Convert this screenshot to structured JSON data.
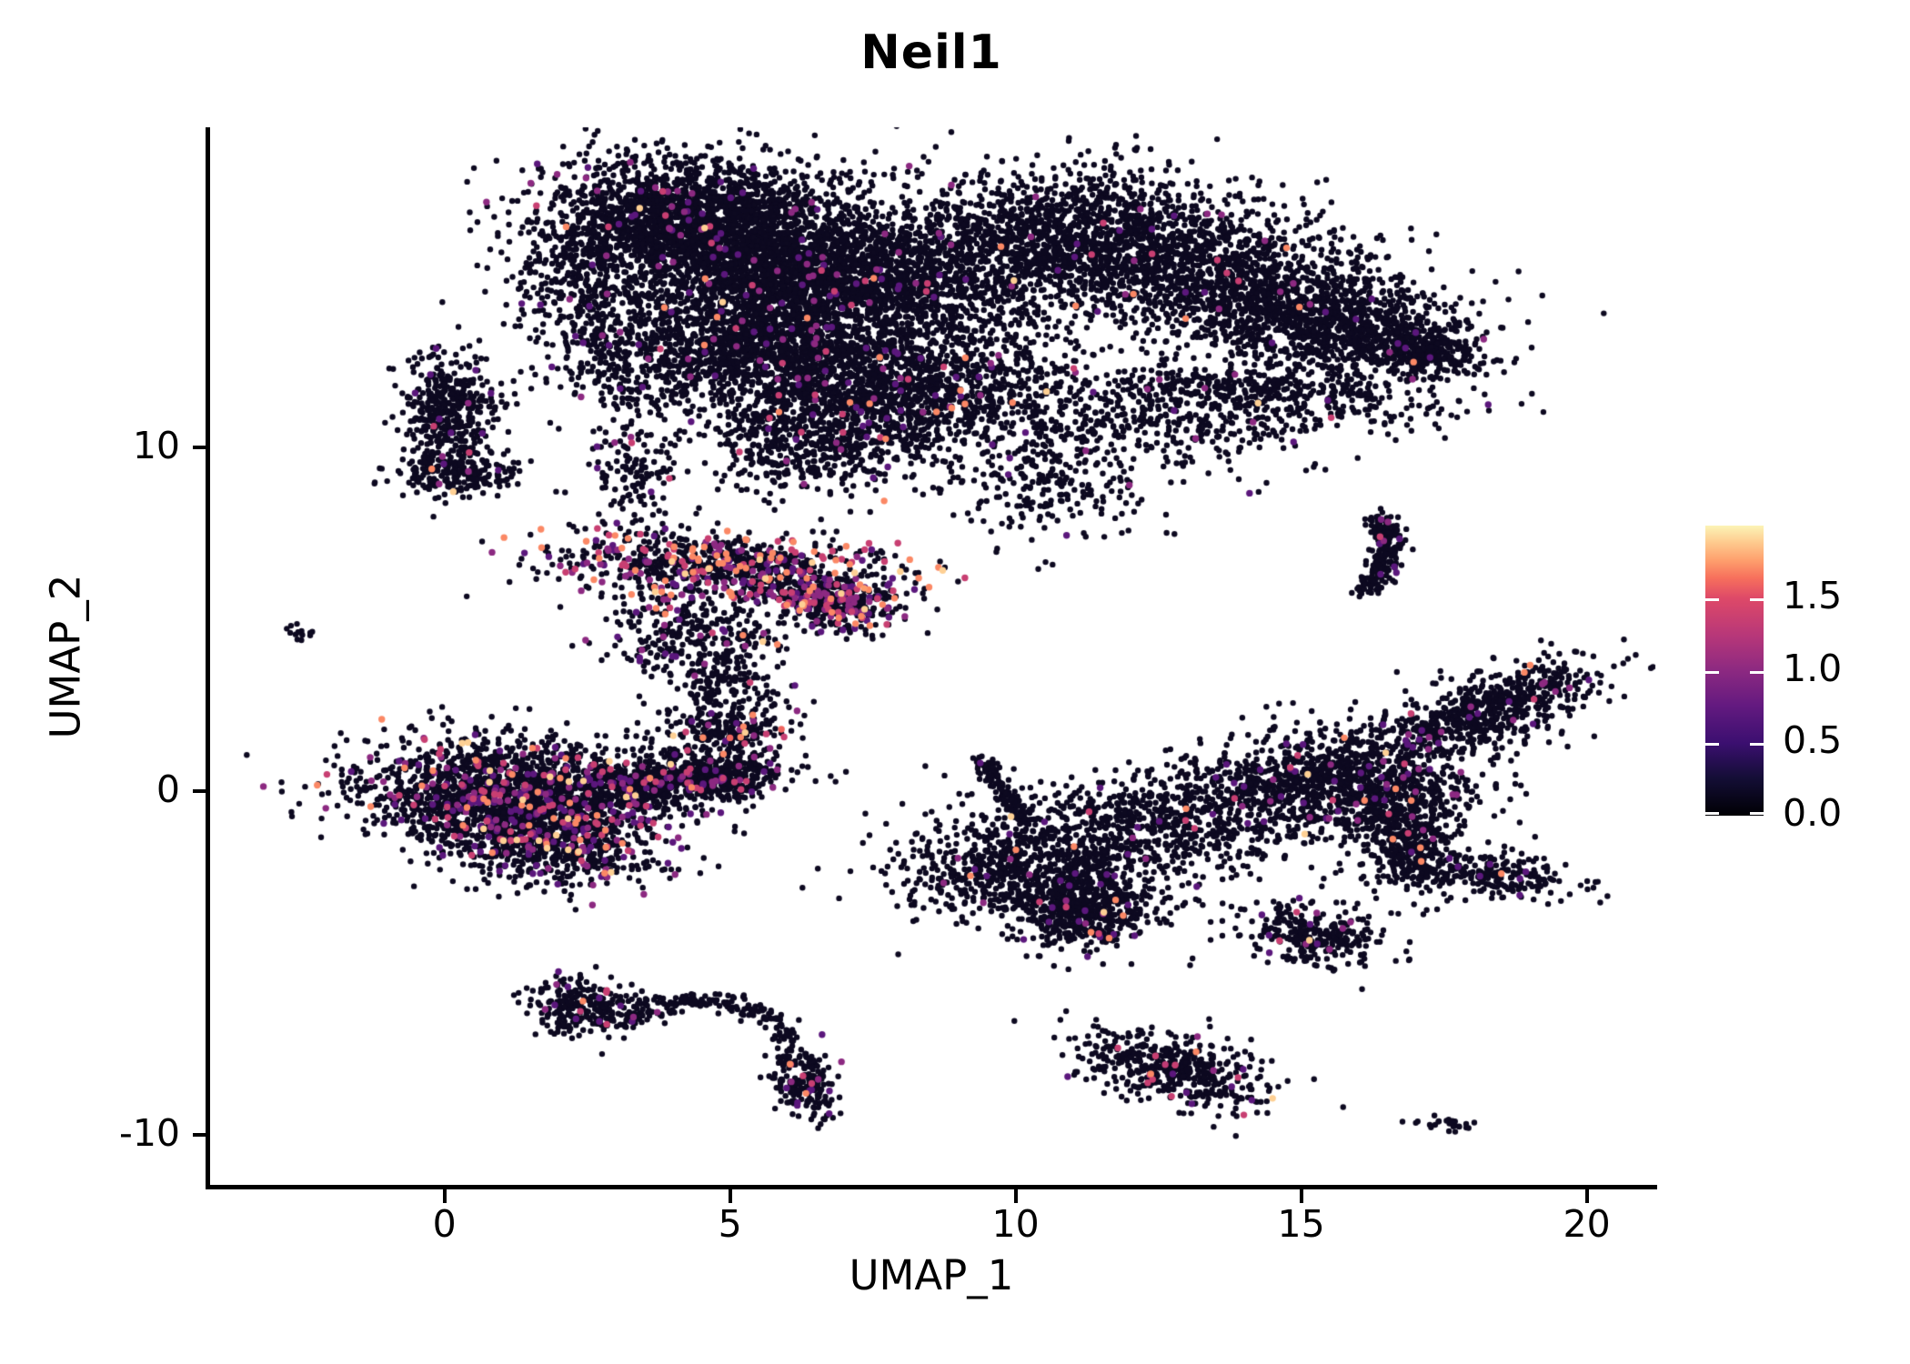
{
  "title": "Neil1",
  "axes": {
    "x": {
      "label": "UMAP_1",
      "tick_labels": [
        "0",
        "5",
        "10",
        "15",
        "20"
      ],
      "tick_values": [
        0,
        5,
        10,
        15,
        20
      ],
      "lim": [
        -4.15,
        21.2
      ]
    },
    "y": {
      "label": "UMAP_2",
      "tick_labels": [
        "-10",
        "0",
        "10"
      ],
      "tick_values": [
        -10,
        0,
        10
      ],
      "lim": [
        -11.5,
        19.3
      ]
    }
  },
  "colorbar": {
    "tick_labels": [
      "0.0",
      "0.5",
      "1.0",
      "1.5"
    ],
    "tick_values": [
      0,
      0.5,
      1.0,
      1.5
    ],
    "vmin": 0,
    "vmax": 2.0,
    "stops": [
      [
        0,
        "#000004"
      ],
      [
        0.13,
        "#140e36"
      ],
      [
        0.25,
        "#3b0f70"
      ],
      [
        0.38,
        "#641a80"
      ],
      [
        0.5,
        "#8c2981"
      ],
      [
        0.62,
        "#b73779"
      ],
      [
        0.75,
        "#de4968"
      ],
      [
        0.82,
        "#f7705c"
      ],
      [
        0.88,
        "#fe9f6d"
      ],
      [
        0.94,
        "#fec98d"
      ],
      [
        1,
        "#fcf4b6"
      ]
    ]
  },
  "style": {
    "zero_color": "#0d0920",
    "axis_color": "#000000",
    "background": "#ffffff",
    "point_radius": 3.2,
    "expr_point_radius": 3.7,
    "expr_levels": [
      0.7,
      1.0,
      1.35,
      1.7,
      1.9
    ],
    "expr_weights": [
      0.45,
      0.3,
      0.15,
      0.08,
      0.02
    ]
  },
  "chart_data": {
    "type": "scatter",
    "title": "Neil1",
    "xlabel": "UMAP_1",
    "ylabel": "UMAP_2",
    "xlim": [
      -4.15,
      21.2
    ],
    "ylim": [
      -11.5,
      19.3
    ],
    "grid": false,
    "legend_position": "right-colorbar",
    "colorscale": "magma 0 to 2.0, black = no expression",
    "clusters": [
      {
        "name": "top-left-core-upper",
        "cx": 4.3,
        "cy": 16.5,
        "sx": 1.25,
        "sy": 0.95,
        "rot": -8,
        "n": 2200,
        "f": 0.02
      },
      {
        "name": "top-left-core-right",
        "cx": 6.9,
        "cy": 15.0,
        "sx": 1.5,
        "sy": 1.05,
        "rot": -10,
        "n": 2100,
        "f": 0.02
      },
      {
        "name": "top-left-mid",
        "cx": 5.3,
        "cy": 13.0,
        "sx": 1.1,
        "sy": 0.95,
        "rot": 0,
        "n": 1200,
        "f": 0.03
      },
      {
        "name": "top-left-lower",
        "cx": 7.8,
        "cy": 11.6,
        "sx": 1.3,
        "sy": 0.85,
        "rot": -6,
        "n": 1200,
        "f": 0.03
      },
      {
        "name": "top-left-fill",
        "cx": 6.5,
        "cy": 13.8,
        "sx": 2.3,
        "sy": 1.8,
        "rot": 0,
        "n": 900,
        "f": 0.02
      },
      {
        "name": "top-left-west-tail",
        "cx": 2.9,
        "cy": 13.2,
        "sx": 0.5,
        "sy": 1.0,
        "rot": 0,
        "n": 280,
        "f": 0.04
      },
      {
        "name": "top-left-west-edge",
        "cx": 2.3,
        "cy": 15.2,
        "sx": 0.5,
        "sy": 0.8,
        "rot": -20,
        "n": 150,
        "f": 0.05
      },
      {
        "name": "left-descender",
        "cx": 3.3,
        "cy": 9.6,
        "sx": 0.4,
        "sy": 0.9,
        "rot": 0,
        "n": 130,
        "f": 0.05
      },
      {
        "name": "mid-lower-lobe",
        "cx": 6.3,
        "cy": 10.2,
        "sx": 0.9,
        "sy": 0.8,
        "rot": 0,
        "n": 480,
        "f": 0.03
      },
      {
        "name": "top-right-upper-left",
        "cx": 11.2,
        "cy": 16.2,
        "sx": 1.3,
        "sy": 0.9,
        "rot": 0,
        "n": 1150,
        "f": 0.015
      },
      {
        "name": "top-right-core",
        "cx": 13.9,
        "cy": 14.8,
        "sx": 1.5,
        "sy": 1.0,
        "rot": -12,
        "n": 1400,
        "f": 0.015
      },
      {
        "name": "top-right-east",
        "cx": 15.9,
        "cy": 13.4,
        "sx": 1.1,
        "sy": 0.7,
        "rot": -14,
        "n": 780,
        "f": 0.02
      },
      {
        "name": "top-right-beak",
        "cx": 17.2,
        "cy": 12.8,
        "sx": 0.45,
        "sy": 0.3,
        "rot": -10,
        "n": 250,
        "f": 0.02
      },
      {
        "name": "top-right-lower-lip",
        "cx": 14.7,
        "cy": 11.6,
        "sx": 1.5,
        "sy": 0.45,
        "rot": -6,
        "n": 400,
        "f": 0.02
      },
      {
        "name": "top-bridge",
        "cx": 9.7,
        "cy": 14.9,
        "sx": 1.1,
        "sy": 1.5,
        "rot": 0,
        "n": 430,
        "f": 0.02
      },
      {
        "name": "top-right-under",
        "cx": 12.4,
        "cy": 10.8,
        "sx": 1.6,
        "sy": 0.75,
        "rot": -8,
        "n": 430,
        "f": 0.02
      },
      {
        "name": "top-right-trail",
        "cx": 10.5,
        "cy": 9.0,
        "sx": 0.9,
        "sy": 0.9,
        "rot": 0,
        "n": 240,
        "f": 0.03
      },
      {
        "name": "center-left-lobe",
        "cx": 10.4,
        "cy": -2.4,
        "sx": 1.25,
        "sy": 0.8,
        "rot": -10,
        "n": 950,
        "f": 0.03
      },
      {
        "name": "center-v-tip",
        "cx": 11.2,
        "cy": -3.5,
        "sx": 0.5,
        "sy": 0.55,
        "rot": 0,
        "n": 380,
        "f": 0.05
      },
      {
        "name": "center-mid-band",
        "cx": 12.3,
        "cy": -1.1,
        "sx": 1.3,
        "sy": 0.65,
        "rot": -6,
        "n": 480,
        "f": 0.02
      },
      {
        "name": "center-right-core",
        "cx": 15.9,
        "cy": 0.2,
        "sx": 1.15,
        "sy": 0.85,
        "rot": 0,
        "n": 1050,
        "f": 0.03
      },
      {
        "name": "right-arm",
        "cx": 18.2,
        "cy": 2.3,
        "sx": 1.15,
        "sy": 0.5,
        "rot": 31,
        "n": 680,
        "f": 0.03
      },
      {
        "name": "right-leg",
        "cx": 16.9,
        "cy": -1.3,
        "sx": 0.45,
        "sy": 0.85,
        "rot": 0,
        "n": 360,
        "f": 0.03
      },
      {
        "name": "right-hook",
        "cx": 18.2,
        "cy": -2.4,
        "sx": 0.75,
        "sy": 0.3,
        "rot": -14,
        "n": 250,
        "f": 0.03
      },
      {
        "name": "center-bridge",
        "cx": 13.6,
        "cy": -0.1,
        "sx": 1.2,
        "sy": 0.55,
        "rot": 10,
        "n": 300,
        "f": 0.02
      },
      {
        "name": "island-right",
        "cx": 15.2,
        "cy": -4.2,
        "sx": 0.6,
        "sy": 0.4,
        "rot": -22,
        "n": 290,
        "f": 0.05
      },
      {
        "name": "bottom-left-core",
        "cx": 1.2,
        "cy": 0.0,
        "sx": 1.35,
        "sy": 0.75,
        "rot": -6,
        "n": 1650,
        "f": 0.13,
        "w": [
          0.35,
          0.3,
          0.2,
          0.1,
          0.05
        ]
      },
      {
        "name": "bottom-left-south",
        "cx": 1.7,
        "cy": -1.4,
        "sx": 1.0,
        "sy": 0.6,
        "rot": -10,
        "n": 850,
        "f": 0.13,
        "w": [
          0.35,
          0.3,
          0.2,
          0.1,
          0.05
        ]
      },
      {
        "name": "bottom-left-tail",
        "cx": 3.8,
        "cy": 0.3,
        "sx": 1.0,
        "sy": 0.4,
        "rot": 6,
        "n": 620,
        "f": 0.09,
        "w": [
          0.4,
          0.3,
          0.18,
          0.09,
          0.03
        ]
      },
      {
        "name": "bottom-left-tip",
        "cx": 4.9,
        "cy": 0.45,
        "sx": 0.35,
        "sy": 0.3,
        "rot": 0,
        "n": 190,
        "f": 0.05
      },
      {
        "name": "violet-band",
        "cx": 4.9,
        "cy": 6.5,
        "sx": 1.5,
        "sy": 0.52,
        "rot": -4,
        "n": 820,
        "f": 0.3,
        "w": [
          0.22,
          0.28,
          0.22,
          0.2,
          0.08
        ]
      },
      {
        "name": "violet-knob",
        "cx": 6.9,
        "cy": 5.5,
        "sx": 0.55,
        "sy": 0.42,
        "rot": -18,
        "n": 360,
        "f": 0.28,
        "w": [
          0.25,
          0.3,
          0.2,
          0.17,
          0.08
        ]
      },
      {
        "name": "violet-under",
        "cx": 4.2,
        "cy": 4.6,
        "sx": 0.75,
        "sy": 0.65,
        "rot": 0,
        "n": 260,
        "f": 0.12
      },
      {
        "name": "violet-chain",
        "cx": 5.0,
        "cy": 2.9,
        "sx": 0.5,
        "sy": 0.85,
        "rot": 0,
        "n": 240,
        "f": 0.06
      },
      {
        "name": "violet-chain-foot",
        "cx": 4.9,
        "cy": 1.7,
        "sx": 0.55,
        "sy": 0.3,
        "rot": 0,
        "n": 150,
        "f": 0.1,
        "w": [
          0.2,
          0.2,
          0.2,
          0.3,
          0.1
        ]
      },
      {
        "name": "west-isle-upper",
        "cx": 0.05,
        "cy": 11.1,
        "sx": 0.42,
        "sy": 0.8,
        "rot": 0,
        "n": 400,
        "f": 0.03
      },
      {
        "name": "west-isle-lower",
        "cx": 0.2,
        "cy": 9.3,
        "sx": 0.5,
        "sy": 0.35,
        "rot": 0,
        "n": 230,
        "f": 0.04
      },
      {
        "name": "west-dash",
        "cx": -2.55,
        "cy": 4.6,
        "sx": 0.16,
        "sy": 0.12,
        "rot": -20,
        "n": 14,
        "f": 0
      },
      {
        "name": "south-isle",
        "cx": 2.5,
        "cy": -6.3,
        "sx": 0.5,
        "sy": 0.42,
        "rot": 0,
        "n": 270,
        "f": 0.05
      },
      {
        "name": "arc-foot",
        "cx": 6.3,
        "cy": -8.4,
        "sx": 0.28,
        "sy": 0.6,
        "rot": 12,
        "n": 210,
        "f": 0.06
      },
      {
        "name": "south-center-isle",
        "cx": 12.8,
        "cy": -8.1,
        "sx": 0.95,
        "sy": 0.5,
        "rot": -25,
        "n": 470,
        "f": 0.05,
        "w": [
          0.3,
          0.3,
          0.3,
          0.08,
          0.02
        ]
      },
      {
        "name": "south-east-dash",
        "cx": 17.5,
        "cy": -9.65,
        "sx": 0.28,
        "sy": 0.1,
        "rot": -8,
        "n": 26,
        "f": 0.05
      }
    ],
    "paths": [
      {
        "name": "center-spike",
        "p0": [
          9.4,
          0.9
        ],
        "c": [
          9.7,
          0.0
        ],
        "p1": [
          10.3,
          -0.9
        ],
        "w": 0.1,
        "n": 130,
        "f": 0.02
      },
      {
        "name": "east-comma",
        "p0": [
          16.35,
          8.0
        ],
        "c": [
          16.8,
          6.9
        ],
        "p1": [
          16.1,
          5.8
        ],
        "w": 0.15,
        "n": 230,
        "f": 0.04
      },
      {
        "name": "south-arc",
        "p0": [
          3.2,
          -6.7
        ],
        "c": [
          4.9,
          -5.2
        ],
        "p1": [
          6.2,
          -7.3
        ],
        "w": 0.14,
        "n": 160,
        "f": 0.01
      }
    ],
    "highlight_points": [
      {
        "x": 9.92,
        "y": -0.74,
        "v": 1.9
      },
      {
        "x": 14.62,
        "y": -4.35,
        "v": 1.35
      },
      {
        "x": 2.38,
        "y": -6.4,
        "v": 1.3
      },
      {
        "x": 12.45,
        "y": -7.7,
        "v": 1.35
      },
      {
        "x": 12.62,
        "y": -7.95,
        "v": 1.3
      },
      {
        "x": 12.35,
        "y": -8.25,
        "v": 1.3
      },
      {
        "x": 4.55,
        "y": 7.1,
        "v": 1.7
      },
      {
        "x": 7.35,
        "y": 5.9,
        "v": 1.75
      },
      {
        "x": 5.0,
        "y": 1.55,
        "v": 1.6
      },
      {
        "x": 5.9,
        "y": 1.8,
        "v": 1.6
      },
      {
        "x": 16.4,
        "y": 7.9,
        "v": 0.9
      }
    ]
  }
}
